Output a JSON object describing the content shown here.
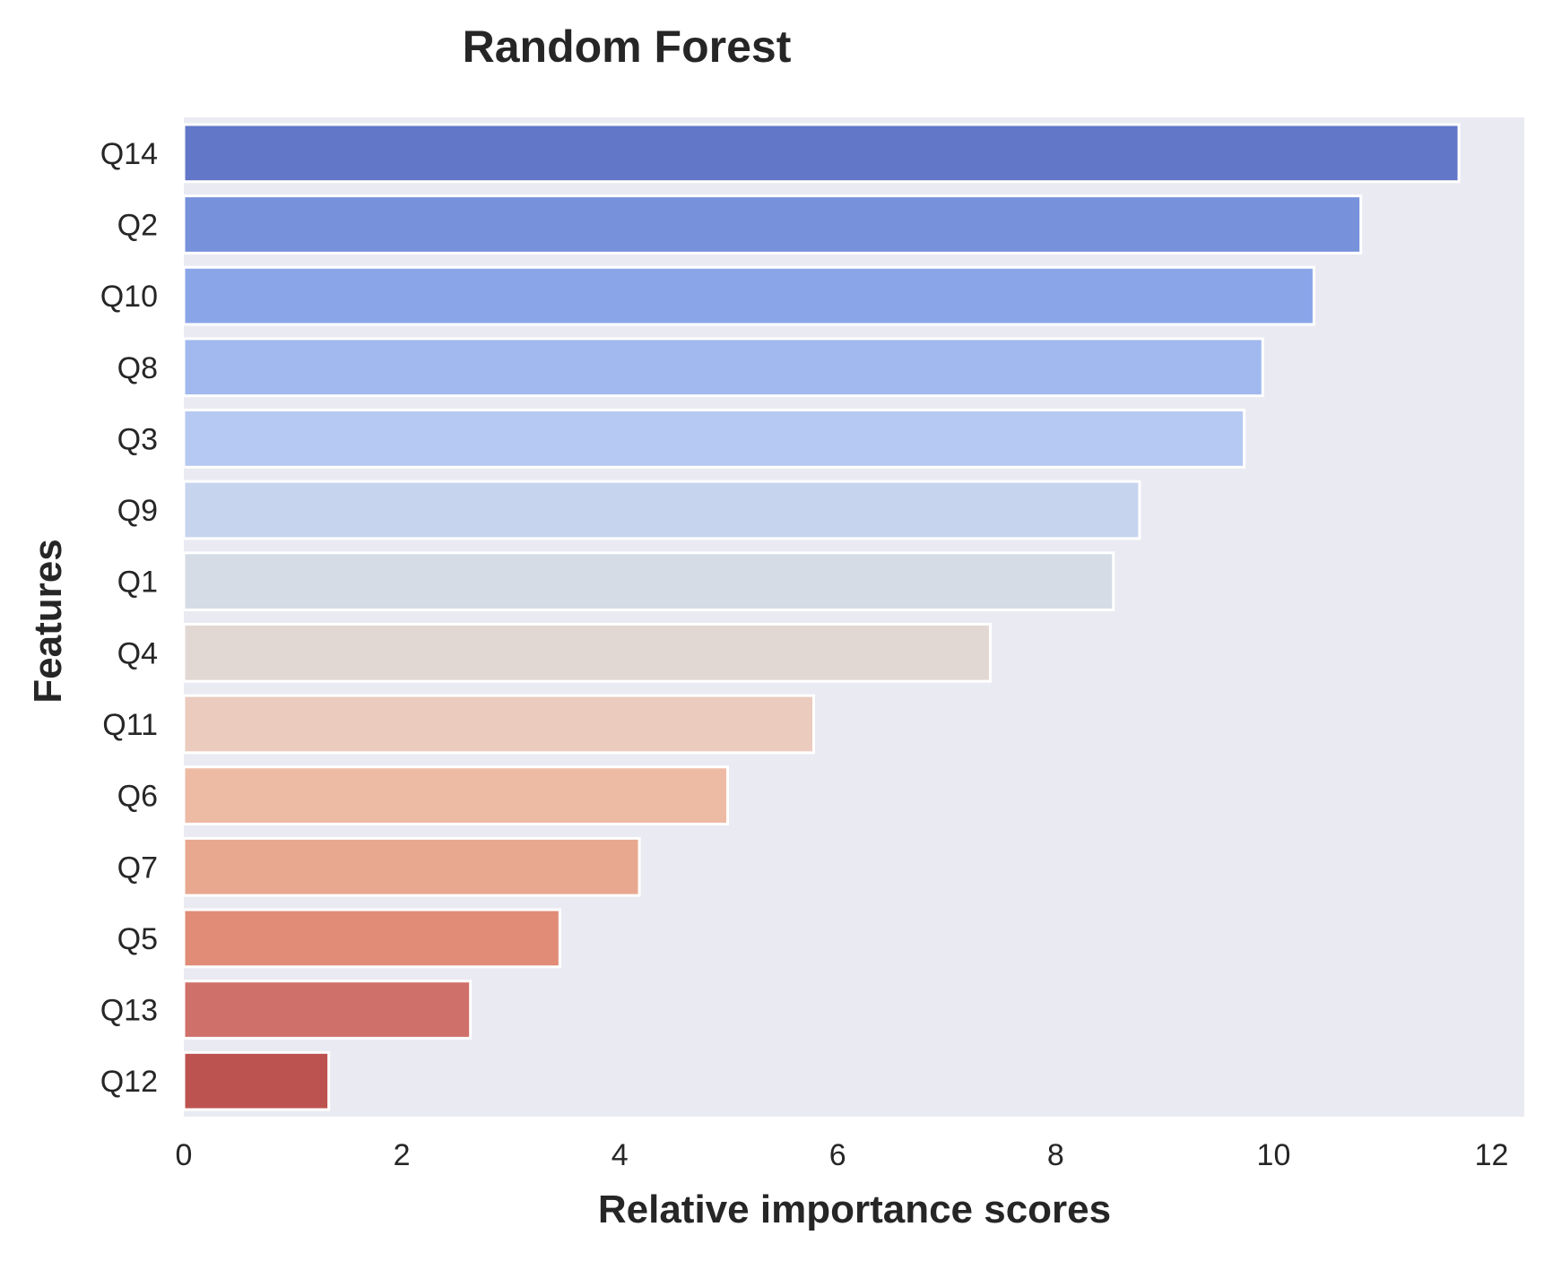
{
  "chart_data": {
    "type": "bar",
    "orientation": "horizontal",
    "title": "Random Forest",
    "xlabel": "Relative importance scores",
    "ylabel": "Features",
    "xlim": [
      0,
      12.3
    ],
    "xticks": [
      0,
      2,
      4,
      6,
      8,
      10,
      12
    ],
    "grid": false,
    "legend": "none",
    "background_color": "#eaeaf2",
    "categories": [
      "Q14",
      "Q2",
      "Q10",
      "Q8",
      "Q3",
      "Q9",
      "Q1",
      "Q4",
      "Q11",
      "Q6",
      "Q7",
      "Q5",
      "Q13",
      "Q12"
    ],
    "values": [
      11.7,
      10.8,
      10.37,
      9.9,
      9.73,
      8.77,
      8.53,
      7.4,
      5.78,
      4.99,
      4.18,
      3.45,
      2.63,
      1.33
    ],
    "colors": [
      "#6377c8",
      "#7791db",
      "#8ba6e8",
      "#a1b9ef",
      "#b5c9f2",
      "#c6d4ee",
      "#d5dce5",
      "#e2d8d3",
      "#eacbbe",
      "#edbaa4",
      "#e8a890",
      "#e08c77",
      "#d0706a",
      "#bd5350"
    ]
  }
}
